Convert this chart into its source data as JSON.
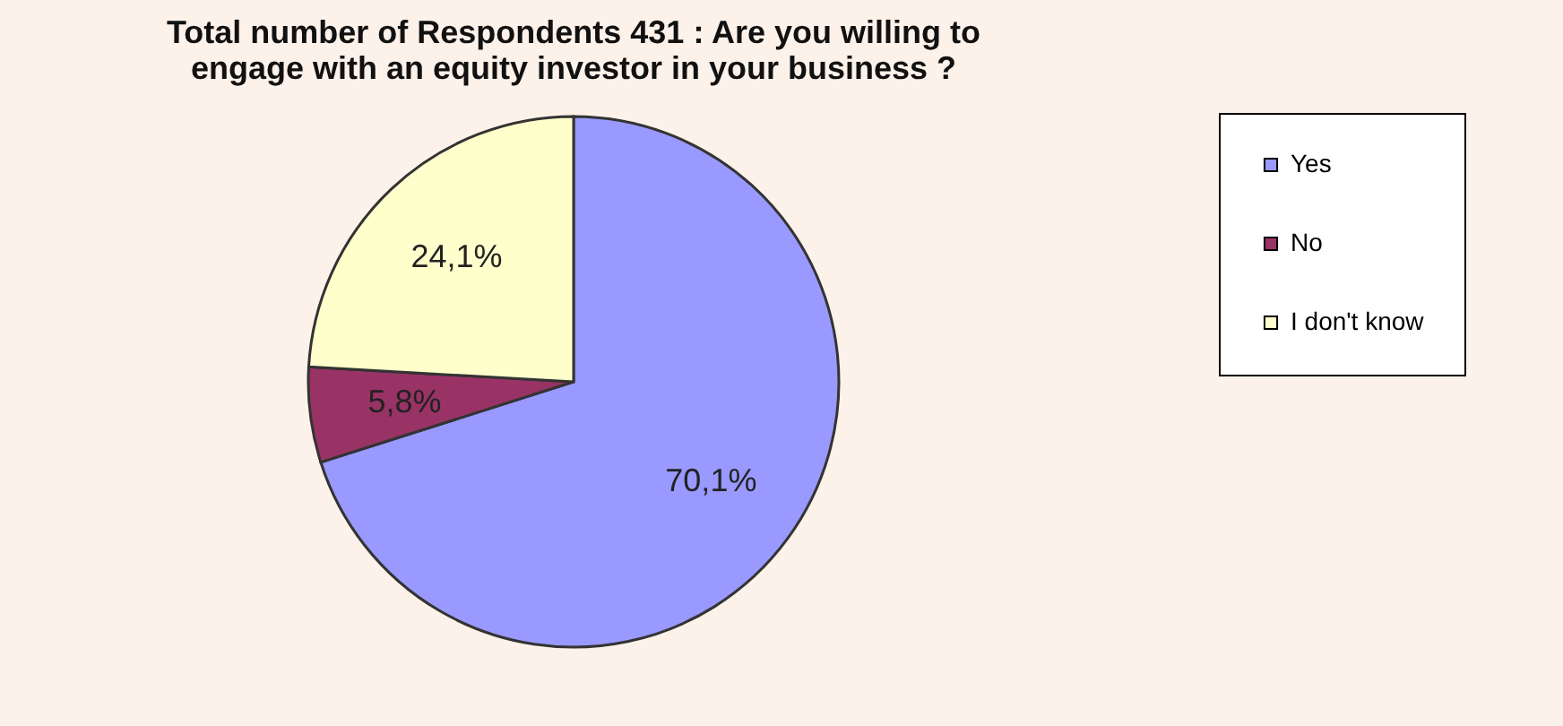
{
  "chart_data": {
    "type": "pie",
    "title": "Total number of Respondents 431 : Are you willing to engage with an equity investor in your business ?",
    "categories": [
      "Yes",
      "No",
      "I don't know"
    ],
    "values": [
      70.1,
      5.8,
      24.1
    ],
    "colors": [
      "#9999ff",
      "#993366",
      "#ffffcc"
    ],
    "value_labels": [
      "70,1%",
      "5,8%",
      "24,1%"
    ],
    "legend": "right"
  }
}
